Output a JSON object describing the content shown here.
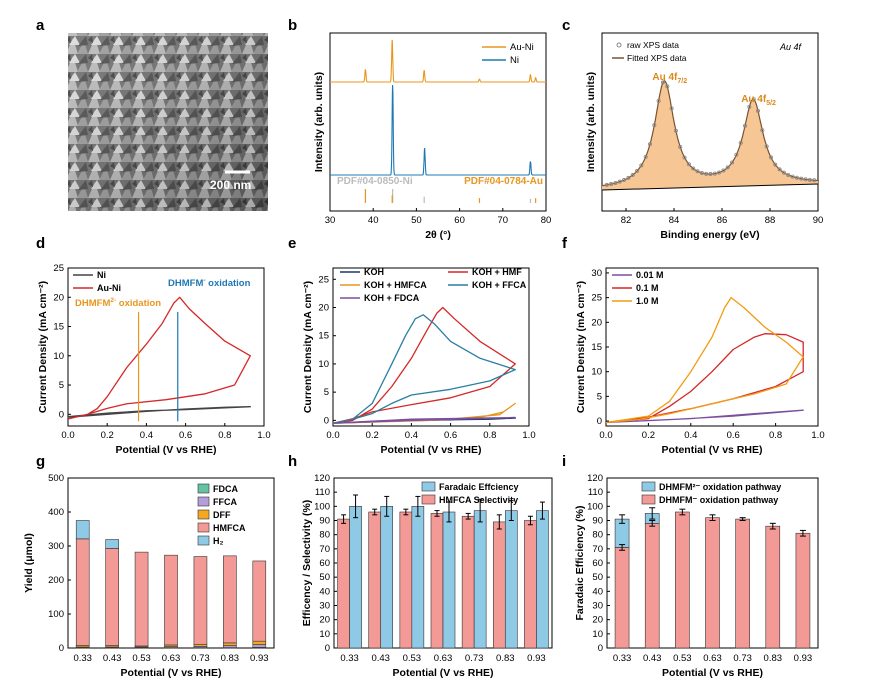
{
  "figure": {
    "panel_labels": [
      "a",
      "b",
      "c",
      "d",
      "e",
      "f",
      "g",
      "h",
      "i"
    ],
    "sem": {
      "scale_bar": "200 nm"
    }
  },
  "chart_data": [
    {
      "panel": "b",
      "type": "line",
      "xlabel": "2θ (°)",
      "ylabel": "Intensity (arb. units)",
      "xlim": [
        30,
        80
      ],
      "xticks": [
        30,
        40,
        50,
        60,
        70,
        80
      ],
      "series": [
        {
          "name": "Au-Ni",
          "color": "#e8961e",
          "peaks": [
            {
              "x": 38.2,
              "h": 0.3
            },
            {
              "x": 44.4,
              "h": 1.0
            },
            {
              "x": 51.8,
              "h": 0.28
            },
            {
              "x": 64.6,
              "h": 0.07
            },
            {
              "x": 76.4,
              "h": 0.17
            },
            {
              "x": 77.6,
              "h": 0.1
            }
          ]
        },
        {
          "name": "Ni",
          "color": "#1f78b4",
          "peaks": [
            {
              "x": 44.5,
              "h": 1.0
            },
            {
              "x": 51.9,
              "h": 0.3
            },
            {
              "x": 76.4,
              "h": 0.15
            }
          ]
        }
      ],
      "references": [
        {
          "label": "PDF#04-0850-Ni",
          "color": "#bbbbbb",
          "lines": [
            {
              "x": 44.5,
              "h": 1.0
            },
            {
              "x": 51.8,
              "h": 0.45
            },
            {
              "x": 76.4,
              "h": 0.3
            }
          ]
        },
        {
          "label": "PDF#04-0784-Au",
          "color": "#e8961e",
          "lines": [
            {
              "x": 38.2,
              "h": 1.0
            },
            {
              "x": 44.4,
              "h": 0.55
            },
            {
              "x": 64.6,
              "h": 0.35
            },
            {
              "x": 77.6,
              "h": 0.35
            }
          ]
        }
      ]
    },
    {
      "panel": "c",
      "type": "line",
      "xlabel": "Binding energy (eV)",
      "ylabel": "Intensity (arb. units)",
      "xlim": [
        81,
        90
      ],
      "xticks": [
        82,
        84,
        86,
        88,
        90
      ],
      "title": "Au 4f",
      "legend": [
        "raw XPS data",
        "Fitted XPS data"
      ],
      "peaks": [
        {
          "center": 83.6,
          "height": 1.0,
          "label_main": "Au 4f",
          "label_sub": "7/2"
        },
        {
          "center": 87.3,
          "height": 0.8,
          "label_main": "Au 4f",
          "label_sub": "5/2"
        }
      ]
    },
    {
      "panel": "d",
      "type": "line",
      "xlabel": "Potential (V vs RHE)",
      "ylabel": "Current Density (mA cm⁻²)",
      "xlim": [
        0.0,
        1.0
      ],
      "ylim": [
        -2,
        25
      ],
      "xticks": [
        0.0,
        0.2,
        0.4,
        0.6,
        0.8,
        1.0
      ],
      "yticks": [
        0,
        5,
        10,
        15,
        20,
        25
      ],
      "series": [
        {
          "name": "Ni",
          "color": "#444444",
          "points": [
            [
              0.0,
              -0.4
            ],
            [
              0.2,
              0.2
            ],
            [
              0.4,
              0.6
            ],
            [
              0.6,
              0.8
            ],
            [
              0.8,
              1.1
            ],
            [
              0.93,
              1.3
            ],
            [
              0.8,
              1.2
            ],
            [
              0.6,
              0.9
            ],
            [
              0.4,
              0.5
            ],
            [
              0.2,
              0.0
            ],
            [
              0.0,
              -0.5
            ]
          ]
        },
        {
          "name": "Au-Ni",
          "color": "#d62728",
          "points": [
            [
              0.0,
              -0.8
            ],
            [
              0.1,
              0.0
            ],
            [
              0.15,
              1.0
            ],
            [
              0.2,
              3.0
            ],
            [
              0.3,
              8.0
            ],
            [
              0.4,
              12.0
            ],
            [
              0.48,
              15.5
            ],
            [
              0.54,
              19.0
            ],
            [
              0.57,
              20.0
            ],
            [
              0.62,
              18.0
            ],
            [
              0.7,
              15.5
            ],
            [
              0.8,
              12.5
            ],
            [
              0.93,
              10.0
            ],
            [
              0.85,
              5.0
            ],
            [
              0.7,
              3.5
            ],
            [
              0.5,
              2.5
            ],
            [
              0.3,
              1.8
            ],
            [
              0.2,
              1.0
            ],
            [
              0.1,
              0.0
            ],
            [
              0.0,
              -0.8
            ]
          ]
        }
      ],
      "markers": [
        {
          "x": 0.36,
          "label": "DHMFM",
          "sup": "2-",
          "tail": " oxidation",
          "color": "#e8961e"
        },
        {
          "x": 0.56,
          "label": "DHMFM",
          "sup": "-",
          "tail": " oxidation",
          "color": "#1f78b4"
        }
      ]
    },
    {
      "panel": "e",
      "type": "line",
      "xlabel": "Potential (V vs RHE)",
      "ylabel": "Current Density (mA cm⁻²)",
      "xlim": [
        0.0,
        1.0
      ],
      "ylim": [
        -1,
        27
      ],
      "xticks": [
        0.0,
        0.2,
        0.4,
        0.6,
        0.8,
        1.0
      ],
      "yticks": [
        0,
        5,
        10,
        15,
        20,
        25
      ],
      "series": [
        {
          "name": "KOH",
          "color": "#1a3a6e",
          "points": [
            [
              0.0,
              -0.5
            ],
            [
              0.4,
              0.0
            ],
            [
              0.8,
              0.2
            ],
            [
              0.93,
              0.4
            ],
            [
              0.6,
              0.1
            ],
            [
              0.2,
              -0.2
            ],
            [
              0.0,
              -0.5
            ]
          ]
        },
        {
          "name": "KOH + HMF",
          "color": "#d62728",
          "points": [
            [
              0.0,
              -0.5
            ],
            [
              0.1,
              0.0
            ],
            [
              0.2,
              2.0
            ],
            [
              0.3,
              6.0
            ],
            [
              0.4,
              11.0
            ],
            [
              0.48,
              16.0
            ],
            [
              0.53,
              19.0
            ],
            [
              0.56,
              20.0
            ],
            [
              0.62,
              18.0
            ],
            [
              0.75,
              14.0
            ],
            [
              0.93,
              10.0
            ],
            [
              0.8,
              6.0
            ],
            [
              0.6,
              4.0
            ],
            [
              0.4,
              2.8
            ],
            [
              0.2,
              1.5
            ],
            [
              0.1,
              0.3
            ],
            [
              0.0,
              -0.5
            ]
          ]
        },
        {
          "name": "KOH + HMFCA",
          "color": "#e8961e",
          "points": [
            [
              0.0,
              -0.5
            ],
            [
              0.5,
              0.0
            ],
            [
              0.75,
              0.5
            ],
            [
              0.87,
              1.5
            ],
            [
              0.93,
              3.0
            ],
            [
              0.85,
              1.0
            ],
            [
              0.6,
              0.2
            ],
            [
              0.3,
              -0.2
            ],
            [
              0.0,
              -0.5
            ]
          ]
        },
        {
          "name": "KOH + FFCA",
          "color": "#2a7fa0",
          "points": [
            [
              0.0,
              -0.5
            ],
            [
              0.1,
              0.2
            ],
            [
              0.2,
              3.0
            ],
            [
              0.3,
              10.0
            ],
            [
              0.37,
              15.0
            ],
            [
              0.42,
              18.0
            ],
            [
              0.46,
              18.7
            ],
            [
              0.52,
              17.0
            ],
            [
              0.6,
              14.0
            ],
            [
              0.75,
              11.0
            ],
            [
              0.93,
              9.0
            ],
            [
              0.8,
              7.0
            ],
            [
              0.6,
              5.5
            ],
            [
              0.4,
              4.5
            ],
            [
              0.3,
              3.0
            ],
            [
              0.2,
              1.2
            ],
            [
              0.1,
              0.2
            ],
            [
              0.0,
              -0.5
            ]
          ]
        },
        {
          "name": "KOH + FDCA",
          "color": "#7b4fa0",
          "points": [
            [
              0.0,
              -0.5
            ],
            [
              0.4,
              0.2
            ],
            [
              0.93,
              0.5
            ],
            [
              0.5,
              0.1
            ],
            [
              0.0,
              -0.5
            ]
          ]
        }
      ]
    },
    {
      "panel": "f",
      "type": "line",
      "xlabel": "Potential (V vs RHE)",
      "ylabel": "Current Density (mA cm⁻²)",
      "xlim": [
        0.0,
        1.0
      ],
      "ylim": [
        -1,
        31
      ],
      "xticks": [
        0.0,
        0.2,
        0.4,
        0.6,
        0.8,
        1.0
      ],
      "yticks": [
        0,
        5,
        10,
        15,
        20,
        25,
        30
      ],
      "series": [
        {
          "name": "0.01 M",
          "color": "#7b4fa0",
          "points": [
            [
              0.0,
              -0.3
            ],
            [
              0.3,
              0.3
            ],
            [
              0.6,
              1.0
            ],
            [
              0.93,
              2.2
            ],
            [
              0.7,
              1.5
            ],
            [
              0.4,
              0.5
            ],
            [
              0.0,
              -0.3
            ]
          ]
        },
        {
          "name": "0.1 M",
          "color": "#d62728",
          "points": [
            [
              0.0,
              -0.3
            ],
            [
              0.2,
              0.5
            ],
            [
              0.3,
              3.0
            ],
            [
              0.4,
              6.0
            ],
            [
              0.5,
              10.0
            ],
            [
              0.6,
              14.5
            ],
            [
              0.7,
              17.0
            ],
            [
              0.75,
              17.7
            ],
            [
              0.85,
              17.5
            ],
            [
              0.93,
              16.0
            ],
            [
              0.93,
              10.0
            ],
            [
              0.8,
              7.0
            ],
            [
              0.6,
              4.5
            ],
            [
              0.4,
              2.5
            ],
            [
              0.2,
              0.8
            ],
            [
              0.0,
              -0.3
            ]
          ]
        },
        {
          "name": "1.0 M",
          "color": "#f39c12",
          "points": [
            [
              0.0,
              -0.3
            ],
            [
              0.2,
              1.0
            ],
            [
              0.3,
              4.0
            ],
            [
              0.4,
              10.0
            ],
            [
              0.5,
              17.0
            ],
            [
              0.56,
              23.0
            ],
            [
              0.59,
              25.0
            ],
            [
              0.65,
              23.0
            ],
            [
              0.75,
              19.0
            ],
            [
              0.85,
              16.0
            ],
            [
              0.93,
              13.0
            ],
            [
              0.85,
              7.5
            ],
            [
              0.7,
              5.5
            ],
            [
              0.5,
              3.5
            ],
            [
              0.3,
              1.5
            ],
            [
              0.15,
              0.3
            ],
            [
              0.0,
              -0.3
            ]
          ]
        }
      ]
    },
    {
      "panel": "g",
      "type": "bar",
      "xlabel": "Potential (V vs RHE)",
      "ylabel": "Yield (μmol)",
      "categories": [
        "0.33",
        "0.43",
        "0.53",
        "0.63",
        "0.73",
        "0.83",
        "0.93"
      ],
      "ylim": [
        0,
        500
      ],
      "yticks": [
        0,
        100,
        200,
        300,
        400,
        500
      ],
      "series": [
        {
          "name": "FDCA",
          "color": "#66c2a5",
          "values": [
            1,
            1,
            1,
            1,
            1,
            1,
            2
          ]
        },
        {
          "name": "FFCA",
          "color": "#b39ddb",
          "values": [
            2,
            2,
            2,
            3,
            4,
            6,
            8
          ]
        },
        {
          "name": "DFF",
          "color": "#f5a623",
          "values": [
            5,
            4,
            3,
            5,
            6,
            8,
            10
          ]
        },
        {
          "name": "HMFCA",
          "color": "#f39a96",
          "values": [
            313,
            286,
            276,
            264,
            258,
            256,
            236
          ]
        },
        {
          "name": "H₂",
          "color": "#8ecae6",
          "values": [
            54,
            26,
            0,
            0,
            0,
            0,
            0
          ]
        }
      ]
    },
    {
      "panel": "h",
      "type": "bar",
      "xlabel": "Potential (V vs RHE)",
      "ylabel": "Efficency / Selectivity (%)",
      "categories": [
        "0.33",
        "0.43",
        "0.53",
        "0.63",
        "0.73",
        "0.83",
        "0.93"
      ],
      "ylim": [
        0,
        120
      ],
      "yticks": [
        0,
        10,
        20,
        30,
        40,
        50,
        60,
        70,
        80,
        90,
        100,
        110,
        120
      ],
      "series": [
        {
          "name": "Faradaic Effciency",
          "color": "#8ecae6",
          "values": [
            100,
            100,
            100,
            96,
            97,
            97,
            97
          ],
          "errors": [
            8,
            7,
            7,
            7,
            8,
            7,
            6
          ]
        },
        {
          "name": "HMFCA Selectivity",
          "color": "#f39a96",
          "values": [
            91,
            96,
            96,
            95,
            93,
            89,
            90
          ],
          "errors": [
            3,
            2,
            2,
            2,
            2,
            5,
            3
          ]
        }
      ]
    },
    {
      "panel": "i",
      "type": "bar",
      "xlabel": "Potential (V vs RHE)",
      "ylabel": "Faradaic Efficiency (%)",
      "categories": [
        "0.33",
        "0.43",
        "0.53",
        "0.63",
        "0.73",
        "0.83",
        "0.93"
      ],
      "ylim": [
        0,
        120
      ],
      "yticks": [
        0,
        10,
        20,
        30,
        40,
        50,
        60,
        70,
        80,
        90,
        100,
        110,
        120
      ],
      "series": [
        {
          "name": "DHMFM²⁻ oxidation pathway",
          "color": "#8ecae6",
          "values": [
            20,
            7,
            0,
            0,
            0,
            0,
            0
          ],
          "errors": [
            3,
            4,
            0,
            0,
            0,
            0,
            0
          ]
        },
        {
          "name": "DHMFM⁻ oxidation pathway",
          "color": "#f39a96",
          "values": [
            71,
            88,
            96,
            92,
            91,
            86,
            81
          ],
          "errors": [
            2,
            2,
            2,
            2,
            1,
            2,
            2
          ]
        }
      ]
    }
  ]
}
